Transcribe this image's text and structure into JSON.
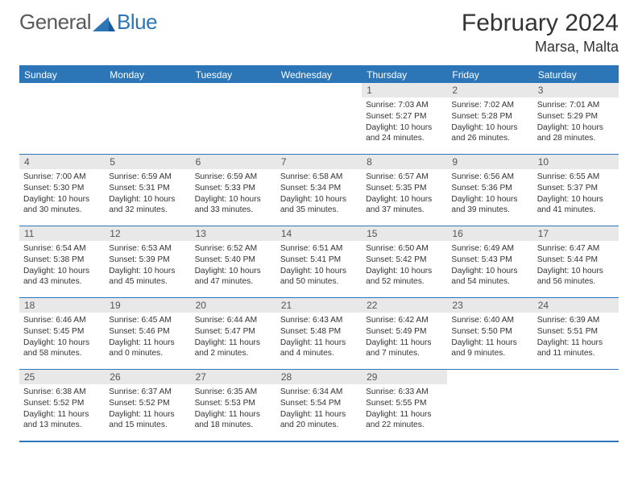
{
  "logo": {
    "general": "General",
    "blue": "Blue"
  },
  "title": "February 2024",
  "location": "Marsa, Malta",
  "colors": {
    "accent": "#2c76b8",
    "header_bg": "#2c76b8",
    "header_text": "#ffffff",
    "daynum_bg": "#e8e8e8",
    "daynum_text": "#555555",
    "body_text": "#333333",
    "border": "#2c76b8"
  },
  "weekdays": [
    "Sunday",
    "Monday",
    "Tuesday",
    "Wednesday",
    "Thursday",
    "Friday",
    "Saturday"
  ],
  "first_weekday_index": 4,
  "days": [
    {
      "n": "1",
      "sunrise": "7:03 AM",
      "sunset": "5:27 PM",
      "daylight": "10 hours and 24 minutes."
    },
    {
      "n": "2",
      "sunrise": "7:02 AM",
      "sunset": "5:28 PM",
      "daylight": "10 hours and 26 minutes."
    },
    {
      "n": "3",
      "sunrise": "7:01 AM",
      "sunset": "5:29 PM",
      "daylight": "10 hours and 28 minutes."
    },
    {
      "n": "4",
      "sunrise": "7:00 AM",
      "sunset": "5:30 PM",
      "daylight": "10 hours and 30 minutes."
    },
    {
      "n": "5",
      "sunrise": "6:59 AM",
      "sunset": "5:31 PM",
      "daylight": "10 hours and 32 minutes."
    },
    {
      "n": "6",
      "sunrise": "6:59 AM",
      "sunset": "5:33 PM",
      "daylight": "10 hours and 33 minutes."
    },
    {
      "n": "7",
      "sunrise": "6:58 AM",
      "sunset": "5:34 PM",
      "daylight": "10 hours and 35 minutes."
    },
    {
      "n": "8",
      "sunrise": "6:57 AM",
      "sunset": "5:35 PM",
      "daylight": "10 hours and 37 minutes."
    },
    {
      "n": "9",
      "sunrise": "6:56 AM",
      "sunset": "5:36 PM",
      "daylight": "10 hours and 39 minutes."
    },
    {
      "n": "10",
      "sunrise": "6:55 AM",
      "sunset": "5:37 PM",
      "daylight": "10 hours and 41 minutes."
    },
    {
      "n": "11",
      "sunrise": "6:54 AM",
      "sunset": "5:38 PM",
      "daylight": "10 hours and 43 minutes."
    },
    {
      "n": "12",
      "sunrise": "6:53 AM",
      "sunset": "5:39 PM",
      "daylight": "10 hours and 45 minutes."
    },
    {
      "n": "13",
      "sunrise": "6:52 AM",
      "sunset": "5:40 PM",
      "daylight": "10 hours and 47 minutes."
    },
    {
      "n": "14",
      "sunrise": "6:51 AM",
      "sunset": "5:41 PM",
      "daylight": "10 hours and 50 minutes."
    },
    {
      "n": "15",
      "sunrise": "6:50 AM",
      "sunset": "5:42 PM",
      "daylight": "10 hours and 52 minutes."
    },
    {
      "n": "16",
      "sunrise": "6:49 AM",
      "sunset": "5:43 PM",
      "daylight": "10 hours and 54 minutes."
    },
    {
      "n": "17",
      "sunrise": "6:47 AM",
      "sunset": "5:44 PM",
      "daylight": "10 hours and 56 minutes."
    },
    {
      "n": "18",
      "sunrise": "6:46 AM",
      "sunset": "5:45 PM",
      "daylight": "10 hours and 58 minutes."
    },
    {
      "n": "19",
      "sunrise": "6:45 AM",
      "sunset": "5:46 PM",
      "daylight": "11 hours and 0 minutes."
    },
    {
      "n": "20",
      "sunrise": "6:44 AM",
      "sunset": "5:47 PM",
      "daylight": "11 hours and 2 minutes."
    },
    {
      "n": "21",
      "sunrise": "6:43 AM",
      "sunset": "5:48 PM",
      "daylight": "11 hours and 4 minutes."
    },
    {
      "n": "22",
      "sunrise": "6:42 AM",
      "sunset": "5:49 PM",
      "daylight": "11 hours and 7 minutes."
    },
    {
      "n": "23",
      "sunrise": "6:40 AM",
      "sunset": "5:50 PM",
      "daylight": "11 hours and 9 minutes."
    },
    {
      "n": "24",
      "sunrise": "6:39 AM",
      "sunset": "5:51 PM",
      "daylight": "11 hours and 11 minutes."
    },
    {
      "n": "25",
      "sunrise": "6:38 AM",
      "sunset": "5:52 PM",
      "daylight": "11 hours and 13 minutes."
    },
    {
      "n": "26",
      "sunrise": "6:37 AM",
      "sunset": "5:52 PM",
      "daylight": "11 hours and 15 minutes."
    },
    {
      "n": "27",
      "sunrise": "6:35 AM",
      "sunset": "5:53 PM",
      "daylight": "11 hours and 18 minutes."
    },
    {
      "n": "28",
      "sunrise": "6:34 AM",
      "sunset": "5:54 PM",
      "daylight": "11 hours and 20 minutes."
    },
    {
      "n": "29",
      "sunrise": "6:33 AM",
      "sunset": "5:55 PM",
      "daylight": "11 hours and 22 minutes."
    }
  ],
  "labels": {
    "sunrise": "Sunrise:",
    "sunset": "Sunset:",
    "daylight": "Daylight:"
  }
}
